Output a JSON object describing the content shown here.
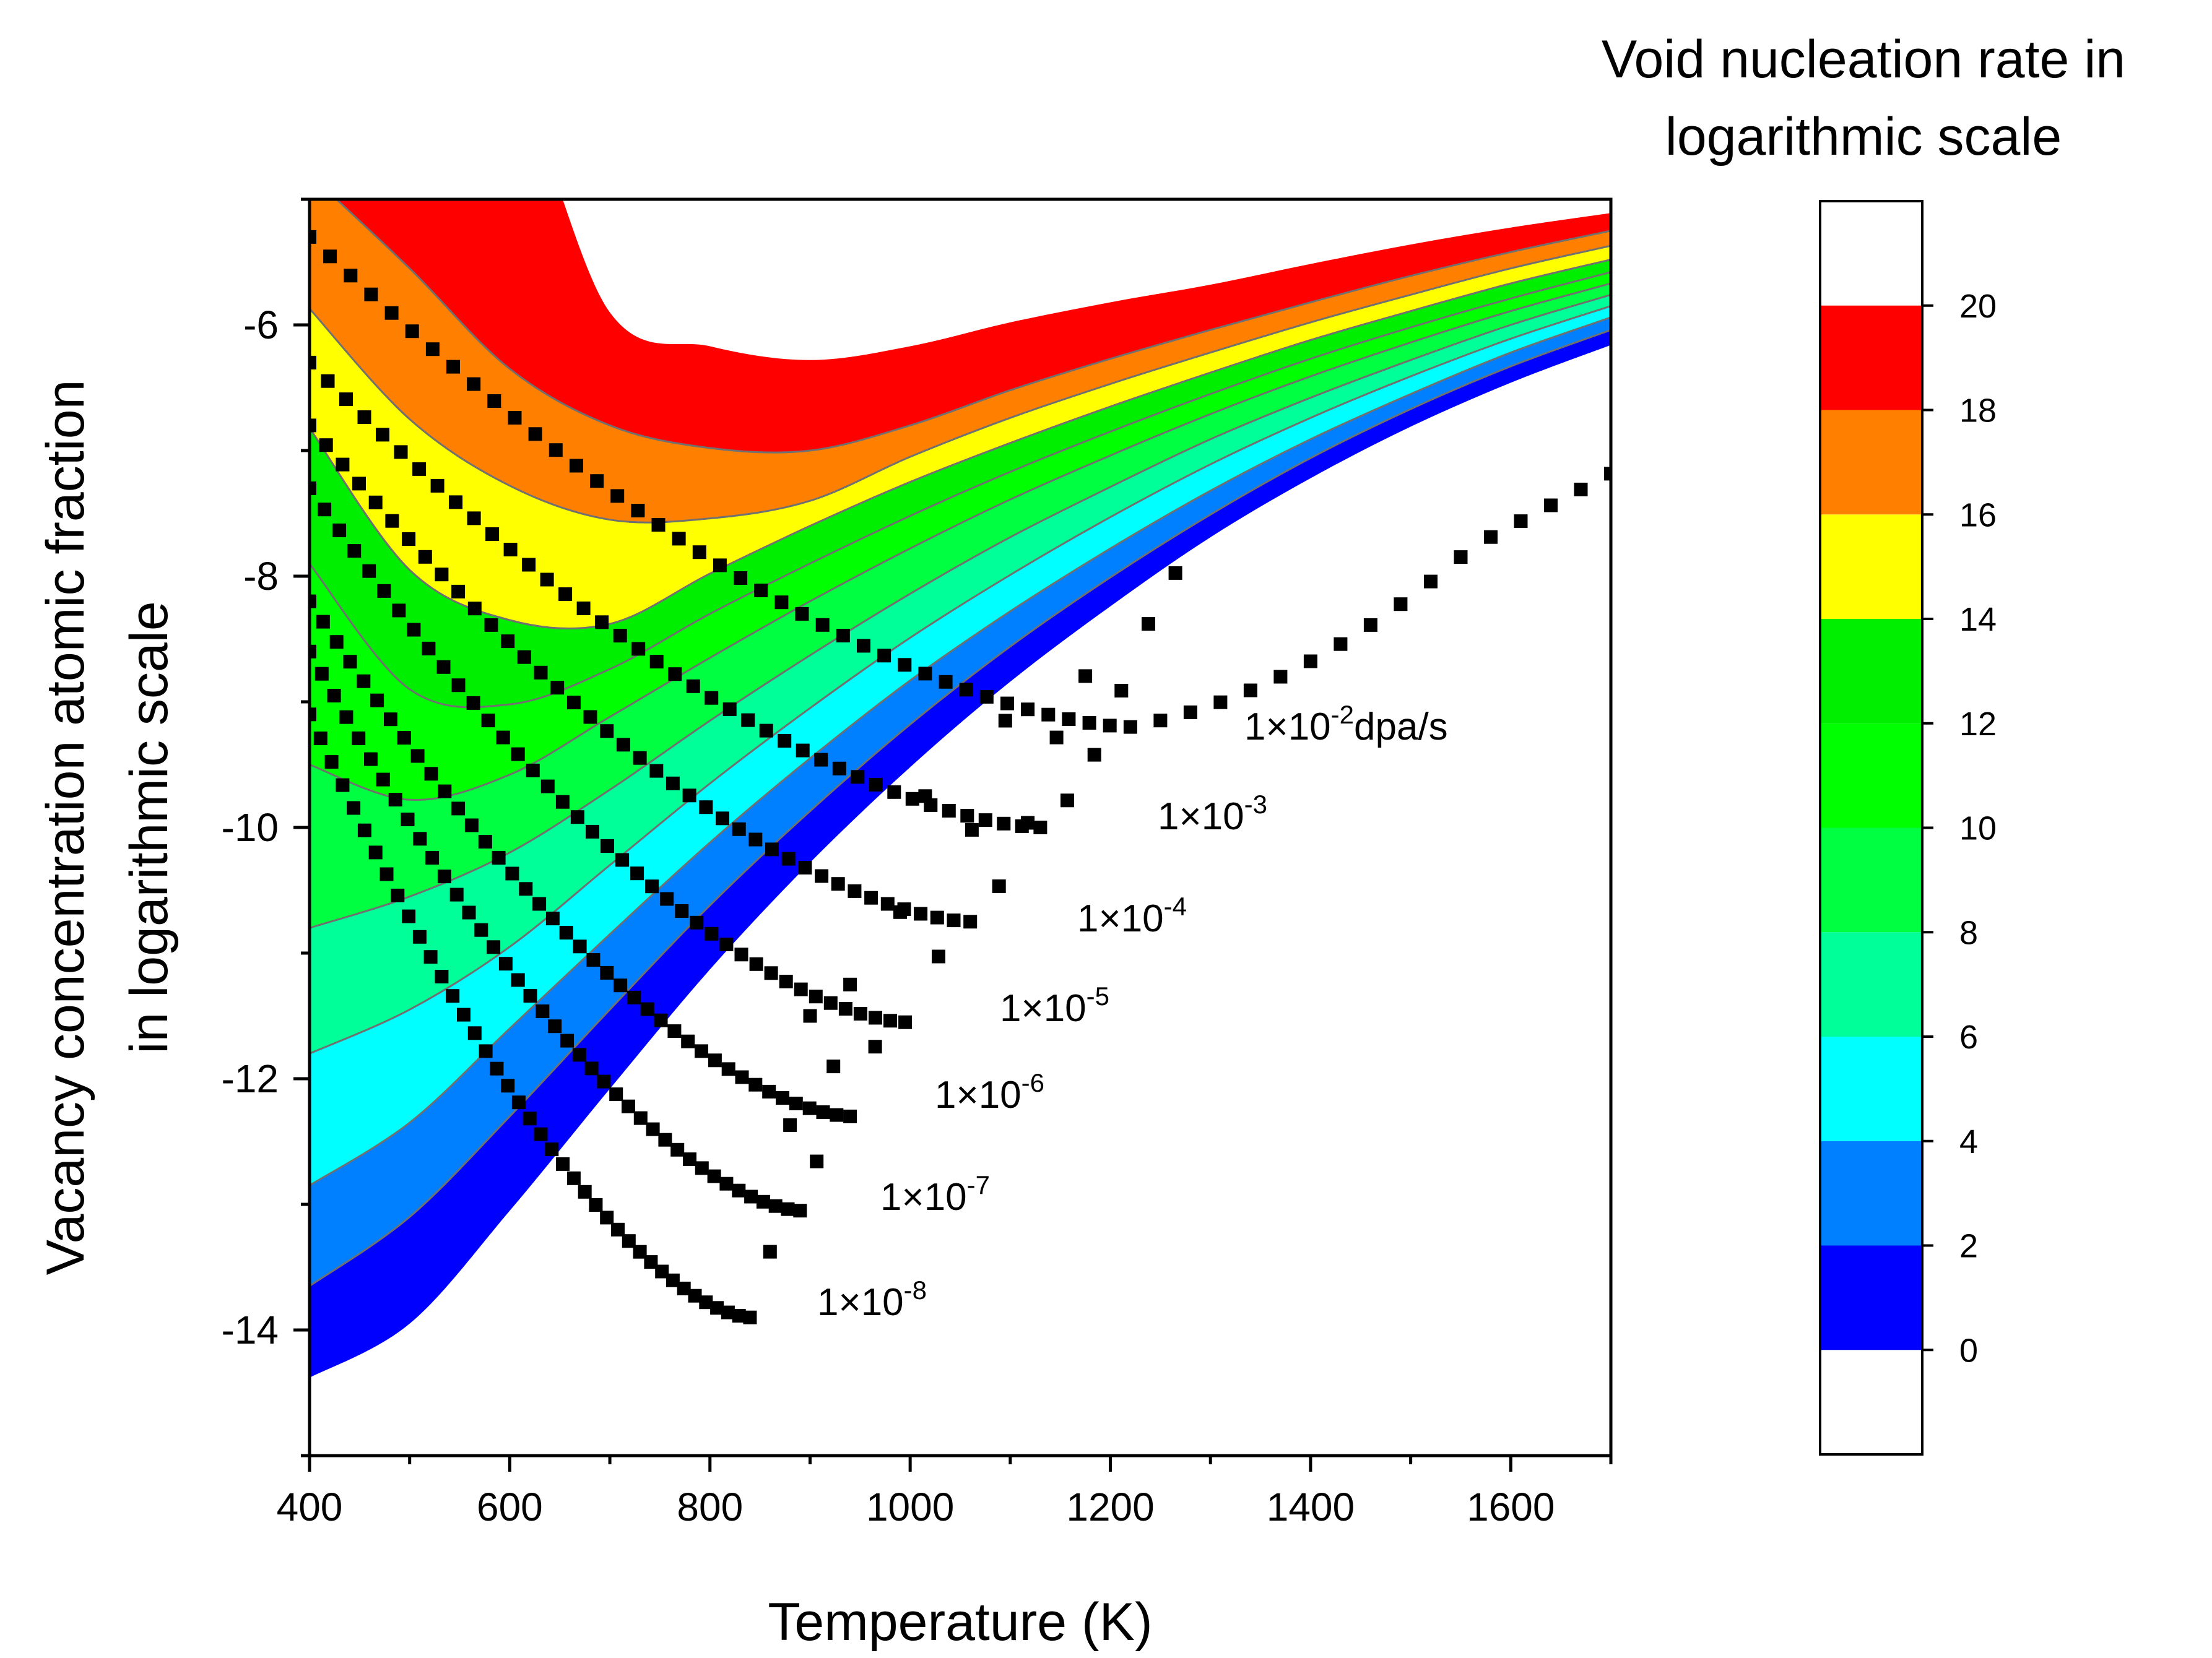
{
  "chart_data": {
    "type": "contour+scatter",
    "xlabel": "Temperature (K)",
    "ylabel_lines": [
      "Vacancy concentration atomic fraction",
      "in logarithmic scale"
    ],
    "xlim": [
      400,
      1700
    ],
    "ylim": [
      -15,
      -5
    ],
    "x_ticks": [
      400,
      600,
      800,
      1000,
      1200,
      1400,
      1600
    ],
    "y_ticks": [
      -14,
      -12,
      -10,
      -8,
      -6
    ],
    "colorbar": {
      "title_lines": [
        "Void nucleation rate in",
        "logarithmic scale"
      ],
      "levels": [
        0,
        2,
        4,
        6,
        8,
        10,
        12,
        14,
        16,
        18,
        20
      ],
      "range": [
        -2,
        22
      ],
      "colors": [
        "#0000ff",
        "#0080ff",
        "#00ffff",
        "#00ff99",
        "#00ff40",
        "#00ff00",
        "#00ee00",
        "#ffff00",
        "#ff8000",
        "#ff0000"
      ]
    },
    "contour_boundaries": {
      "x": [
        400,
        500,
        600,
        700,
        800,
        900,
        1000,
        1100,
        1200,
        1300,
        1400,
        1500,
        1600,
        1700
      ],
      "levels": [
        {
          "level": 0,
          "y": [
            -14.38,
            -13.95,
            -13.05,
            -12.08,
            -11.13,
            -10.28,
            -9.52,
            -8.84,
            -8.24,
            -7.69,
            -7.22,
            -6.81,
            -6.46,
            -6.16
          ]
        },
        {
          "level": 2,
          "y": [
            -13.65,
            -13.1,
            -12.3,
            -11.45,
            -10.62,
            -9.87,
            -9.18,
            -8.56,
            -8.01,
            -7.51,
            -7.06,
            -6.67,
            -6.33,
            -6.04
          ]
        },
        {
          "level": 4,
          "y": [
            -12.85,
            -12.35,
            -11.6,
            -10.85,
            -10.12,
            -9.45,
            -8.83,
            -8.28,
            -7.78,
            -7.32,
            -6.91,
            -6.55,
            -6.22,
            -5.94
          ]
        },
        {
          "level": 6,
          "y": [
            -11.8,
            -11.45,
            -10.95,
            -10.3,
            -9.65,
            -9.05,
            -8.49,
            -7.99,
            -7.53,
            -7.11,
            -6.74,
            -6.41,
            -6.11,
            -5.85
          ]
        },
        {
          "level": 8,
          "y": [
            -10.8,
            -10.55,
            -10.2,
            -9.7,
            -9.15,
            -8.63,
            -8.14,
            -7.69,
            -7.29,
            -6.91,
            -6.58,
            -6.28,
            -6.0,
            -5.76
          ]
        },
        {
          "level": 10,
          "y": [
            -9.5,
            -9.78,
            -9.58,
            -9.12,
            -8.65,
            -8.2,
            -7.78,
            -7.39,
            -7.04,
            -6.71,
            -6.41,
            -6.14,
            -5.89,
            -5.67
          ]
        },
        {
          "level": 12,
          "y": [
            -7.9,
            -8.9,
            -9.02,
            -8.74,
            -8.3,
            -7.9,
            -7.52,
            -7.17,
            -6.85,
            -6.55,
            -6.27,
            -6.02,
            -5.79,
            -5.58
          ]
        },
        {
          "level": 14,
          "y": [
            -6.82,
            -7.95,
            -8.35,
            -8.38,
            -7.98,
            -7.6,
            -7.25,
            -6.94,
            -6.65,
            -6.38,
            -6.12,
            -5.89,
            -5.67,
            -5.48
          ]
        },
        {
          "level": 16,
          "y": [
            -5.87,
            -6.75,
            -7.28,
            -7.55,
            -7.54,
            -7.4,
            -7.05,
            -6.74,
            -6.47,
            -6.22,
            -5.98,
            -5.76,
            -5.55,
            -5.37
          ]
        },
        {
          "level": 18,
          "y": [
            -4.8,
            -5.55,
            -6.35,
            -6.8,
            -6.98,
            -7.0,
            -6.8,
            -6.52,
            -6.27,
            -6.04,
            -5.82,
            -5.61,
            -5.42,
            -5.25
          ]
        }
      ]
    },
    "series": [
      {
        "name": "1×10-2dpa/s",
        "label_base": "1×10",
        "label_exp": "-2",
        "label_unit": "dpa/s",
        "min_point": [
          1220,
          -9.2
        ],
        "start_y": -5.3,
        "left_slope": -0.000121,
        "right_slope": 0.0042,
        "end_x": 1700
      },
      {
        "name": "1×10-3",
        "label_base": "1×10",
        "label_exp": "-3",
        "label_unit": "",
        "min_point": [
          1130,
          -10.0
        ],
        "start_y": -6.3,
        "left_slope": -0.00044,
        "right_slope": 0.015,
        "end_x": 1265
      },
      {
        "name": "1×10-4",
        "label_base": "1×10",
        "label_exp": "-4",
        "label_unit": "",
        "min_point": [
          1060,
          -10.75
        ],
        "start_y": -6.8,
        "left_slope": -0.00052,
        "right_slope": 0.017,
        "end_x": 1175
      },
      {
        "name": "1×10-5",
        "label_base": "1×10",
        "label_exp": "-5",
        "label_unit": "",
        "min_point": [
          995,
          -11.55
        ],
        "start_y": -7.3,
        "left_slope": -0.00072,
        "right_slope": 0.024,
        "end_x": 1095
      },
      {
        "name": "1×10-6",
        "label_base": "1×10",
        "label_exp": "-6",
        "label_unit": "",
        "min_point": [
          940,
          -12.3
        ],
        "start_y": -8.2,
        "left_slope": -0.00078,
        "right_slope": 0.034,
        "end_x": 1015
      },
      {
        "name": "1×10-7",
        "label_base": "1×10",
        "label_exp": "-7",
        "label_unit": "",
        "min_point": [
          890,
          -13.05
        ],
        "start_y": -8.6,
        "left_slope": -0.0009,
        "right_slope": 0.036,
        "end_x": 940
      },
      {
        "name": "1×10-8",
        "label_base": "1×10",
        "label_exp": "-8",
        "label_unit": "",
        "min_point": [
          840,
          -13.9
        ],
        "start_y": -9.1,
        "left_slope": -0.0,
        "right_slope": 0.04,
        "end_x": 900
      }
    ]
  }
}
